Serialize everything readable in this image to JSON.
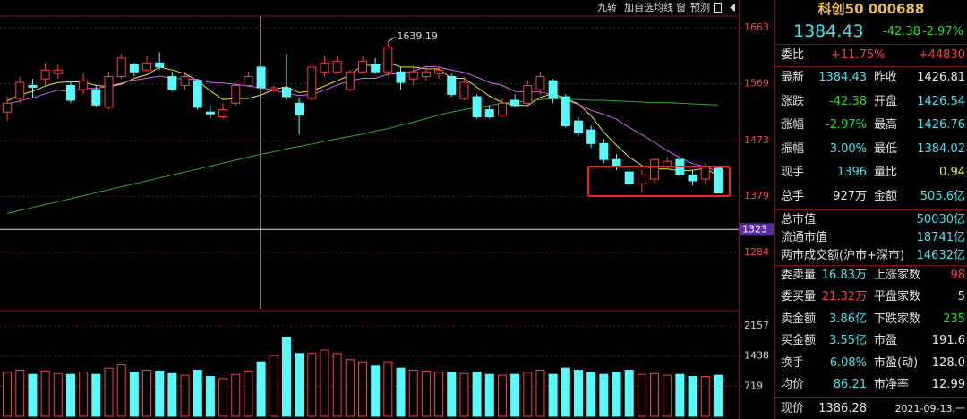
{
  "toolbar": [
    "九转",
    "加自选",
    "均线",
    "窗",
    "预测"
  ],
  "chart_data": [
    {
      "type": "candlestick",
      "open": [
        1521,
        1544,
        1566,
        1577,
        1586,
        1566,
        1559,
        1559,
        1529,
        1581,
        1601,
        1592,
        1604,
        1581,
        1566,
        1574,
        1521,
        1513,
        1536,
        1566,
        1597,
        1559,
        1562,
        1536,
        1544,
        1589,
        1589,
        1559,
        1589,
        1601,
        1589,
        1589,
        1577,
        1581,
        1586,
        1581,
        1544,
        1547,
        1525,
        1516,
        1541,
        1536,
        1559,
        1574,
        1547,
        1506,
        1491,
        1468,
        1441,
        1420,
        1400,
        1408,
        1430,
        1441,
        1415,
        1408,
        1426.54
      ],
      "high": [
        1547,
        1581,
        1577,
        1604,
        1601,
        1574,
        1586,
        1566,
        1589,
        1619,
        1604,
        1616,
        1622,
        1589,
        1589,
        1577,
        1532,
        1536,
        1571,
        1589,
        1601,
        1566,
        1619,
        1544,
        1604,
        1616,
        1616,
        1592,
        1616,
        1612,
        1639.19,
        1597,
        1597,
        1597,
        1597,
        1586,
        1581,
        1551,
        1532,
        1544,
        1551,
        1574,
        1589,
        1577,
        1551,
        1513,
        1498,
        1476,
        1450,
        1426,
        1423,
        1444,
        1445,
        1445,
        1423,
        1435,
        1426.76
      ],
      "low": [
        1506,
        1536,
        1544,
        1566,
        1577,
        1536,
        1551,
        1529,
        1525,
        1577,
        1581,
        1589,
        1592,
        1556,
        1559,
        1525,
        1510,
        1509,
        1532,
        1563,
        1559,
        1554,
        1541,
        1483,
        1541,
        1581,
        1586,
        1556,
        1586,
        1586,
        1581,
        1559,
        1566,
        1574,
        1577,
        1547,
        1541,
        1510,
        1510,
        1513,
        1529,
        1532,
        1551,
        1536,
        1495,
        1480,
        1461,
        1435,
        1423,
        1396,
        1385,
        1400,
        1426,
        1411,
        1397,
        1400,
        1384.02
      ],
      "close": [
        1536,
        1571,
        1563,
        1592,
        1592,
        1541,
        1574,
        1533,
        1581,
        1612,
        1589,
        1604,
        1597,
        1559,
        1581,
        1529,
        1518,
        1525,
        1566,
        1581,
        1562,
        1562,
        1547,
        1516,
        1597,
        1604,
        1607,
        1589,
        1607,
        1589,
        1631,
        1571,
        1589,
        1589,
        1592,
        1551,
        1571,
        1513,
        1513,
        1536,
        1532,
        1566,
        1581,
        1544,
        1498,
        1486,
        1468,
        1441,
        1430,
        1400,
        1415,
        1441,
        1438,
        1415,
        1405,
        1430,
        1384.43
      ],
      "series": [
        {
          "color": "#e6e63a",
          "values": [
            1540,
            1550,
            1556,
            1565,
            1571,
            1572,
            1572,
            1566,
            1564,
            1568,
            1578,
            1584,
            1597,
            1592,
            1586,
            1574,
            1557,
            1542,
            1544,
            1544,
            1550,
            1559,
            1564,
            1554,
            1557,
            1565,
            1574,
            1583,
            1601,
            1599,
            1605,
            1597,
            1597,
            1594,
            1594,
            1578,
            1578,
            1563,
            1548,
            1537,
            1533,
            1532,
            1546,
            1552,
            1544,
            1535,
            1515,
            1487,
            1465,
            1445,
            1431,
            1425,
            1425,
            1422,
            1423,
            1426,
            1414
          ]
        },
        {
          "color": "#d060f0",
          "values": [
            1535,
            1540,
            1545,
            1552,
            1558,
            1556,
            1561,
            1561,
            1565,
            1570,
            1575,
            1578,
            1582,
            1578,
            1577,
            1576,
            1571,
            1570,
            1568,
            1565,
            1562,
            1558,
            1553,
            1549,
            1551,
            1558,
            1567,
            1574,
            1578,
            1578,
            1585,
            1586,
            1590,
            1598,
            1597,
            1592,
            1588,
            1580,
            1571,
            1566,
            1556,
            1555,
            1555,
            1550,
            1541,
            1534,
            1524,
            1517,
            1509,
            1495,
            1483,
            1470,
            1456,
            1444,
            1434,
            1429,
            1420
          ]
        },
        {
          "color": "#2ea82e",
          "values": [
            1350,
            1355,
            1360,
            1365,
            1370,
            1375,
            1380,
            1385,
            1390,
            1395,
            1400,
            1405,
            1410,
            1415,
            1420,
            1425,
            1430,
            1435,
            1440,
            1445,
            1450,
            1454,
            1459,
            1463,
            1467,
            1472,
            1476,
            1480,
            1484,
            1489,
            1493,
            1499,
            1504,
            1510,
            1516,
            1521,
            1525,
            1529,
            1532,
            1536,
            1538,
            1540,
            1542,
            1544,
            1543,
            1542,
            1541,
            1541,
            1540,
            1539,
            1538,
            1537,
            1537,
            1536,
            1535,
            1534,
            1533
          ]
        }
      ],
      "ylim": [
        1189,
        1683
      ],
      "yticks": [
        1663,
        1569,
        1473,
        1379,
        1284
      ],
      "crosshair": 1323,
      "up_color": "#ff3c3c",
      "down_color": "#54fcfc",
      "grid": true
    },
    {
      "type": "bar",
      "values": [
        1050,
        1100,
        1000,
        1080,
        1020,
        1000,
        1060,
        1000,
        1150,
        1230,
        1050,
        1100,
        1080,
        1020,
        980,
        1100,
        950,
        900,
        1000,
        1080,
        1300,
        1450,
        1890,
        1500,
        1500,
        1580,
        1500,
        1350,
        1300,
        1200,
        1300,
        1150,
        1100,
        1080,
        1050,
        1050,
        1020,
        1050,
        1000,
        980,
        1000,
        1050,
        1100,
        1000,
        1150,
        1100,
        1050,
        1000,
        1050,
        1100,
        1000,
        1020,
        980,
        1000,
        950,
        950,
        980
      ],
      "ylim": [
        0,
        2457
      ],
      "yticks": [
        2157,
        1438,
        719
      ],
      "grid": true
    }
  ],
  "quote": {
    "title": "科创50 000688",
    "price": "1384.43",
    "change": "-42.38",
    "change_pct": "-2.97%",
    "weibi": [
      "委比",
      "+11.75%",
      "+44830"
    ],
    "grid1": [
      [
        "最新",
        "1384.43",
        "昨收",
        "1426.81"
      ],
      [
        "涨跌",
        "-42.38",
        "开盘",
        "1426.54"
      ],
      [
        "涨幅",
        "-2.97%",
        "最高",
        "1426.76"
      ],
      [
        "振幅",
        "3.00%",
        "最低",
        "1384.02"
      ],
      [
        "现手",
        "1396",
        "量比",
        "0.94"
      ],
      [
        "总手",
        "927万",
        "金额",
        "505.6亿"
      ]
    ],
    "wide": [
      [
        "总市值",
        "50030亿"
      ],
      [
        "流通市值",
        "18741亿"
      ],
      [
        "两市成交额(沪市+深市)",
        "14632亿"
      ]
    ],
    "grid2": [
      [
        "委卖量",
        "16.83万",
        "上涨家数",
        "98"
      ],
      [
        "委买量",
        "21.32万",
        "平盘家数",
        "5"
      ],
      [
        "卖金额",
        "3.86亿",
        "下跌家数",
        "235"
      ],
      [
        "买金额",
        "3.55亿",
        "市盈",
        "191.6"
      ],
      [
        "换手",
        "6.08%",
        "市盈(动)",
        "128.0"
      ],
      [
        "均价",
        "86.21",
        "市净率",
        "12.99"
      ]
    ],
    "footer": [
      "现价",
      "1386.28",
      "2021-09-13,一"
    ]
  }
}
